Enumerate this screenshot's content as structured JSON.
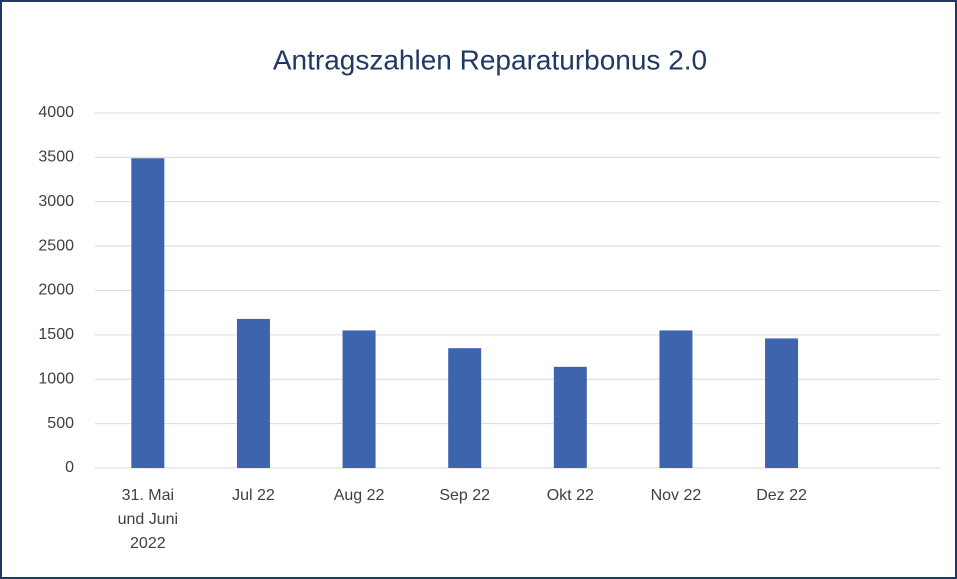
{
  "chart_data": {
    "type": "bar",
    "title": "Antragszahlen Reparaturbonus 2.0",
    "categories": [
      "31. Mai und Juni 2022",
      "Jul 22",
      "Aug 22",
      "Sep 22",
      "Okt 22",
      "Nov 22",
      "Dez 22",
      null
    ],
    "values": [
      3490,
      1680,
      1550,
      1350,
      1140,
      1550,
      1460,
      null
    ],
    "color": "#3d64ad",
    "ylim": [
      0,
      4000
    ],
    "yticks": [
      0,
      500,
      1000,
      1500,
      2000,
      2500,
      3000,
      3500,
      4000
    ],
    "grid": true
  }
}
